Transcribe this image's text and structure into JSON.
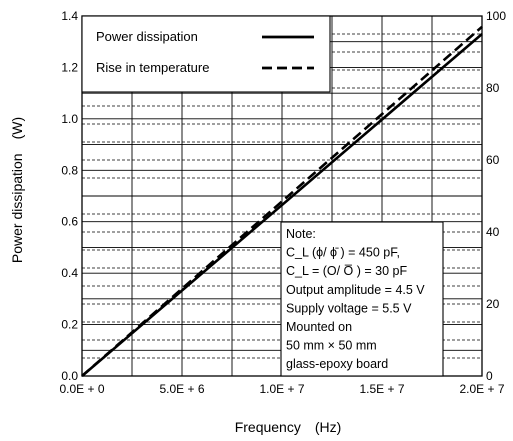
{
  "chart_data": {
    "type": "line",
    "xlabel": "Frequency (Hz)",
    "ylabel": "Power dissipation (W)",
    "x_range": [
      0,
      20000000
    ],
    "y_range": [
      0,
      1.4
    ],
    "y2_range": [
      0,
      100
    ],
    "x_ticks": [
      {
        "value": 0,
        "label": "0.0E + 0"
      },
      {
        "value": 5000000,
        "label": "5.0E + 6"
      },
      {
        "value": 10000000,
        "label": "1.0E + 7"
      },
      {
        "value": 15000000,
        "label": "1.5E + 7"
      },
      {
        "value": 20000000,
        "label": "2.0E + 7"
      }
    ],
    "y_ticks": [
      {
        "value": 0.0,
        "label": "0.0"
      },
      {
        "value": 0.2,
        "label": "0.2"
      },
      {
        "value": 0.4,
        "label": "0.4"
      },
      {
        "value": 0.6,
        "label": "0.6"
      },
      {
        "value": 0.8,
        "label": "0.8"
      },
      {
        "value": 1.0,
        "label": "1.0"
      },
      {
        "value": 1.2,
        "label": "1.2"
      },
      {
        "value": 1.4,
        "label": "1.4"
      }
    ],
    "y2_ticks": [
      {
        "value": 0,
        "label": "0"
      },
      {
        "value": 20,
        "label": "20"
      },
      {
        "value": 40,
        "label": "40"
      },
      {
        "value": 60,
        "label": "60"
      },
      {
        "value": 80,
        "label": "80"
      },
      {
        "value": 100,
        "label": "100"
      }
    ],
    "series": [
      {
        "name": "Power dissipation",
        "axis": "left",
        "style": "solid",
        "x": [
          0,
          20000000
        ],
        "y": [
          0.0,
          1.33
        ]
      },
      {
        "name": "Rise in temperature",
        "axis": "right",
        "style": "dashed",
        "x": [
          0,
          20000000
        ],
        "y": [
          0,
          97
        ]
      }
    ],
    "legend": {
      "placement": "top-left"
    },
    "note": [
      "Note:",
      "C_L (ϕ/ ϕ̄ ) = 450 pF,",
      "C_L = (O/ O̅ ) = 30 pF",
      "Output amplitude = 4.5 V",
      "Supply voltage = 5.5 V",
      "Mounted on",
      "50 mm × 50 mm",
      "glass-epoxy board"
    ],
    "grid": true
  }
}
